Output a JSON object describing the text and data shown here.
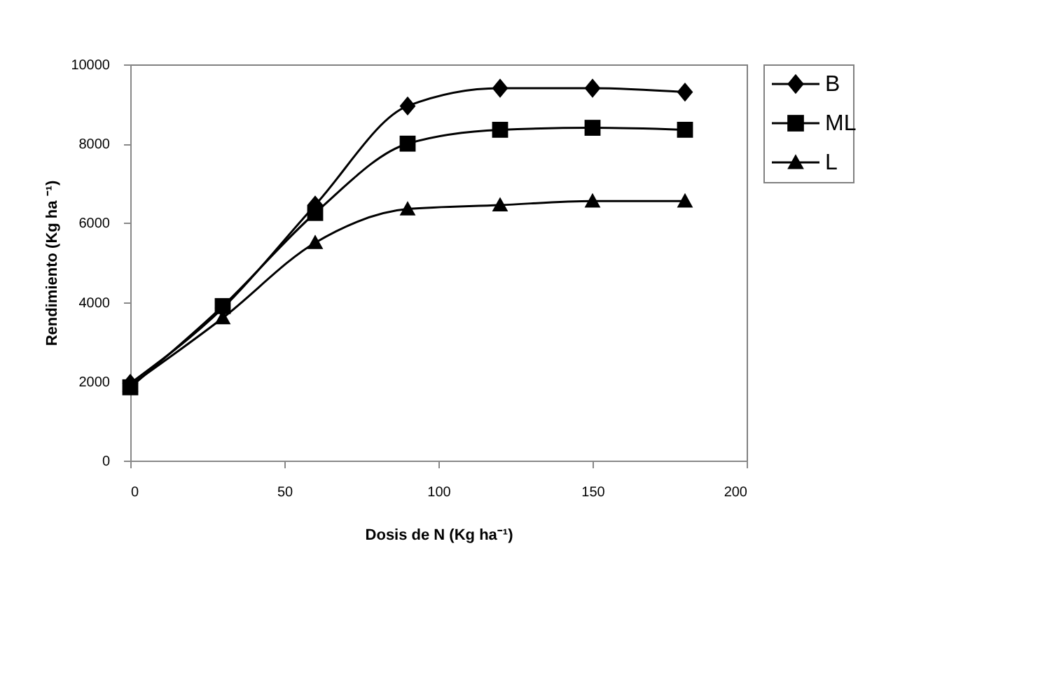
{
  "chart_data": {
    "type": "line",
    "xlabel": "Dosis de N (Kg ha⁻¹)",
    "ylabel": "Rendimiento (Kg ha ⁻¹)",
    "x": [
      0,
      30,
      60,
      90,
      120,
      150,
      180
    ],
    "series": [
      {
        "name": "B",
        "color": "#000000",
        "marker": "diamond",
        "values": [
          1950,
          3850,
          6450,
          8950,
          9400,
          9400,
          9300
        ]
      },
      {
        "name": "ML",
        "color": "#000000",
        "marker": "square",
        "values": [
          1850,
          3900,
          6250,
          8000,
          8350,
          8400,
          8350
        ]
      },
      {
        "name": "L",
        "color": "#000000",
        "marker": "triangle",
        "values": [
          1900,
          3600,
          5500,
          6350,
          6450,
          6550,
          6550
        ]
      }
    ],
    "xlim": [
      0,
      200
    ],
    "xticks": [
      0,
      50,
      100,
      150,
      200
    ],
    "ylim": [
      0,
      10000
    ],
    "yticks": [
      0,
      2000,
      4000,
      6000,
      8000,
      10000
    ],
    "grid": false,
    "legend": "right",
    "line_style": "solid"
  }
}
